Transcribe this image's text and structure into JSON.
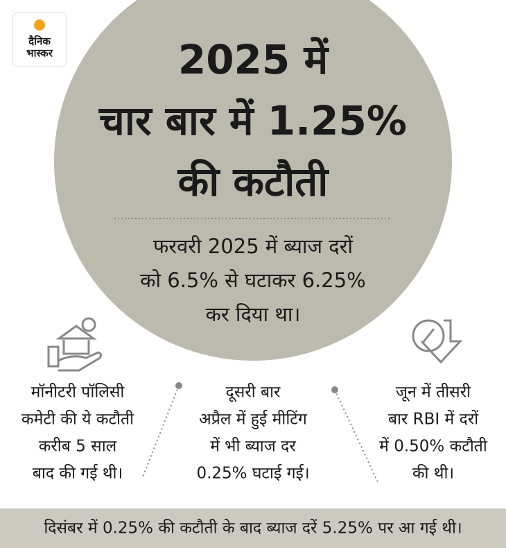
{
  "logo": {
    "lines": [
      "दैनिक",
      "भास्कर"
    ]
  },
  "headline": {
    "lines": [
      "2025 में",
      "चार बार में 1.25%",
      "की कटौती"
    ]
  },
  "subtitle": {
    "lines": [
      "फरवरी 2025 में ब्याज दरों",
      "को 6.5% से घटाकर 6.25%",
      "कर दिया था।"
    ]
  },
  "columns": [
    {
      "lines": [
        "मॉनीटरी पॉलिसी",
        "कमेटी की ये कटौती",
        "करीब 5 साल",
        "बाद की गई थी।"
      ]
    },
    {
      "lines": [
        "दूसरी बार",
        "अप्रैल में हुई मीटिंग",
        "में भी ब्याज दर",
        "0.25% घटाई गई।"
      ]
    },
    {
      "lines": [
        "जून में तीसरी",
        "बार RBI में दरों",
        "में 0.50% कटौती",
        "की थी।"
      ]
    }
  ],
  "footer": {
    "text": "दिसंबर में 0.25% की कटौती के बाद ब्याज दरें 5.25% पर आ गई थी।"
  }
}
